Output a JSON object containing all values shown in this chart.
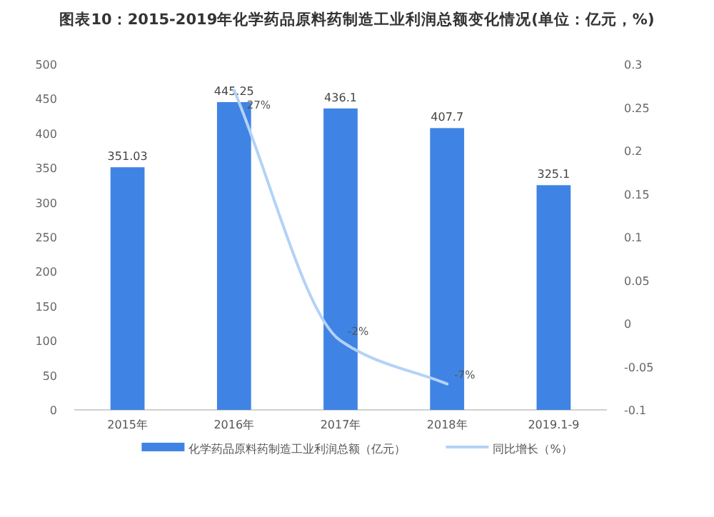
{
  "chart_data": {
    "type": "bar",
    "title": "图表10：2015-2019年化学药品原料药制造工业利润总额变化情况(单位：亿元，%)",
    "categories": [
      "2015年",
      "2016年",
      "2017年",
      "2018年",
      "2019.1-9"
    ],
    "series": [
      {
        "name": "化学药品原料药制造工业利润总额（亿元）",
        "color": "#3f84e4",
        "values": [
          351.03,
          445.25,
          436.1,
          407.7,
          325.1
        ],
        "data_labels": true
      },
      {
        "name": "同比增长（%）",
        "type": "line",
        "axis": "y2",
        "color": "#b4d2f7",
        "values": [
          null,
          0.27,
          -0.02,
          -0.07,
          null
        ],
        "value_labels": [
          null,
          "27%",
          "-2%",
          "-7%",
          null
        ]
      }
    ],
    "ylim": [
      0,
      500
    ],
    "yticks": [
      0,
      50,
      100,
      150,
      200,
      250,
      300,
      350,
      400,
      450,
      500
    ],
    "y2lim": [
      -0.1,
      0.3
    ],
    "y2ticks": [
      -0.1,
      -0.05,
      0,
      0.05,
      0.1,
      0.15,
      0.2,
      0.25,
      0.3
    ],
    "grid": false,
    "legend": "bottom"
  }
}
